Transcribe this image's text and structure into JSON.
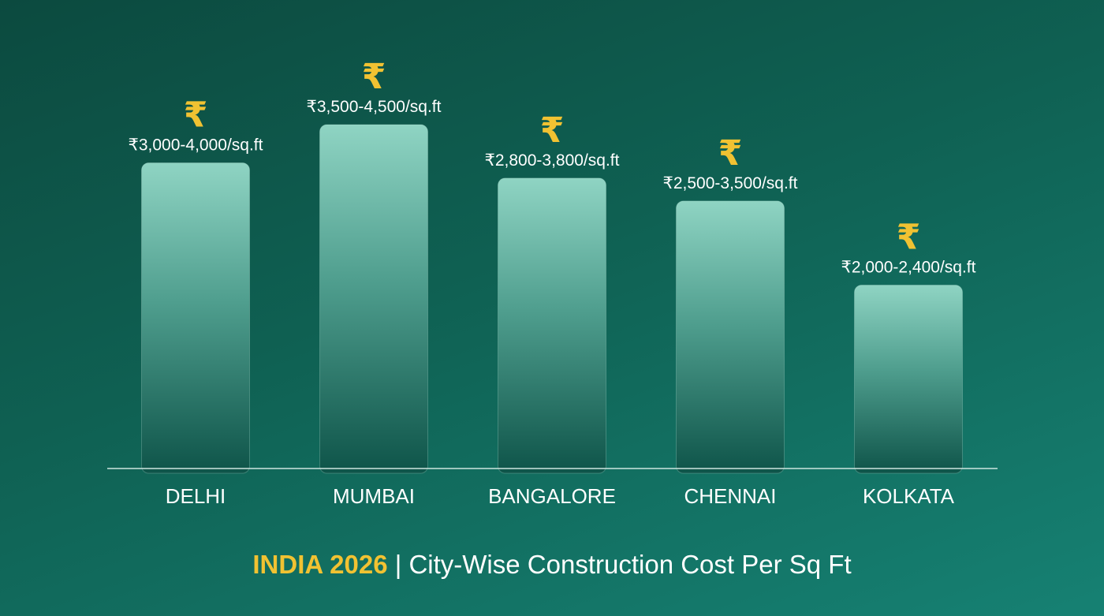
{
  "chart_data": {
    "type": "bar",
    "categories": [
      "DELHI",
      "MUMBAI",
      "BANGALORE",
      "CHENNAI",
      "KOLKATA"
    ],
    "series": [
      {
        "low": [
          3000,
          3500,
          2800,
          2500,
          2000
        ],
        "high": [
          4000,
          4500,
          3800,
          3500,
          2400
        ]
      }
    ],
    "value_labels": [
      "₹3,000-4,000/sq.ft",
      "₹3,500-4,500/sq.ft",
      "₹2,800-3,800/sq.ft",
      "₹2,500-3,500/sq.ft",
      "₹2,000-2,400/sq.ft"
    ],
    "marker_symbol": "₹",
    "title_highlight": "INDIA 2026",
    "title_separator": "|",
    "title": "City-Wise Construction Cost Per Sq Ft",
    "ylim": [
      0,
      4500
    ],
    "grid": false,
    "colors": {
      "bar_top": "#8fd4c3",
      "bar_bottom": "#0e5449",
      "symbol": "#f1c232",
      "text": "#ffffff",
      "baseline": "#cde6df"
    }
  }
}
